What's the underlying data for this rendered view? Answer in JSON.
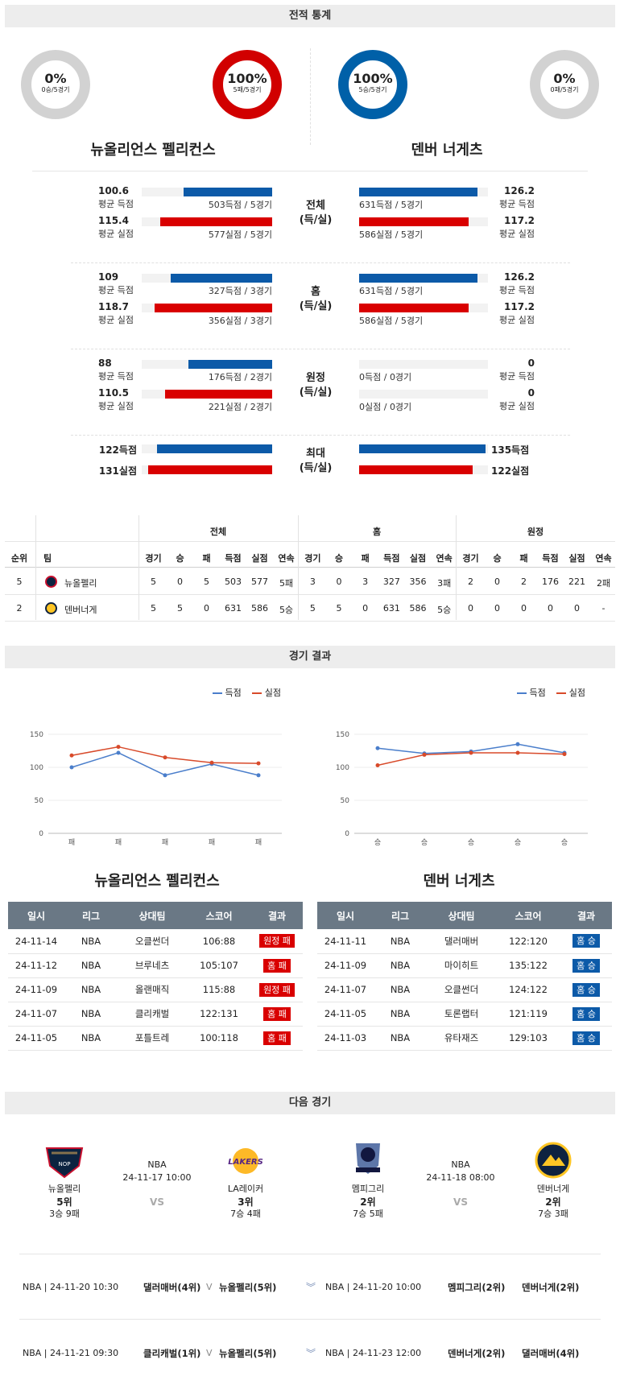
{
  "sections": {
    "stats": "전적 통계",
    "results": "경기 결과",
    "next": "다음 경기"
  },
  "donuts": [
    {
      "pct": "0%",
      "sub": "0승/5경기",
      "color": "#d2d2d2"
    },
    {
      "pct": "100%",
      "sub": "5패/5경기",
      "color": "#d10000"
    },
    {
      "pct": "100%",
      "sub": "5승/5경기",
      "color": "#0060a8"
    },
    {
      "pct": "0%",
      "sub": "0패/5경기",
      "color": "#d2d2d2"
    }
  ],
  "teams": {
    "home": "뉴올리언스 펠리컨스",
    "away": "덴버 너게츠"
  },
  "stat_rows": [
    {
      "cat": "전체",
      "cat2": "(득/실)",
      "l": [
        {
          "val": "100.6",
          "lab": "평균 득점",
          "txt": "503득점 / 5경기",
          "ratio": 0.68
        },
        {
          "val": "115.4",
          "lab": "평균 실점",
          "txt": "577실점 / 5경기",
          "ratio": 0.86
        }
      ],
      "r": [
        {
          "val": "126.2",
          "lab": "평균 득점",
          "txt": "631득점 / 5경기",
          "ratio": 0.92
        },
        {
          "val": "117.2",
          "lab": "평균 실점",
          "txt": "586실점 / 5경기",
          "ratio": 0.85
        }
      ]
    },
    {
      "cat": "홈",
      "cat2": "(득/실)",
      "l": [
        {
          "val": "109",
          "lab": "평균 득점",
          "txt": "327득점 / 3경기",
          "ratio": 0.78
        },
        {
          "val": "118.7",
          "lab": "평균 실점",
          "txt": "356실점 / 3경기",
          "ratio": 0.9
        }
      ],
      "r": [
        {
          "val": "126.2",
          "lab": "평균 득점",
          "txt": "631득점 / 5경기",
          "ratio": 0.92
        },
        {
          "val": "117.2",
          "lab": "평균 실점",
          "txt": "586실점 / 5경기",
          "ratio": 0.85
        }
      ]
    },
    {
      "cat": "원정",
      "cat2": "(득/실)",
      "l": [
        {
          "val": "88",
          "lab": "평균 득점",
          "txt": "176득점 / 2경기",
          "ratio": 0.64
        },
        {
          "val": "110.5",
          "lab": "평균 실점",
          "txt": "221실점 / 2경기",
          "ratio": 0.82
        }
      ],
      "r": [
        {
          "val": "0",
          "lab": "평균 득점",
          "txt": "0득점 / 0경기",
          "ratio": 0
        },
        {
          "val": "0",
          "lab": "평균 실점",
          "txt": "0실점 / 0경기",
          "ratio": 0
        }
      ]
    }
  ],
  "max_row": {
    "cat": "최대",
    "cat2": "(득/실)",
    "l": [
      {
        "val": "122득점",
        "ratio": 0.88
      },
      {
        "val": "131실점",
        "ratio": 0.95
      }
    ],
    "r": [
      {
        "val": "135득점",
        "ratio": 0.98
      },
      {
        "val": "122실점",
        "ratio": 0.88
      }
    ]
  },
  "ranking": {
    "groups": [
      "전체",
      "홈",
      "원정"
    ],
    "head": [
      "순위",
      "팀"
    ],
    "cols": [
      "경기",
      "승",
      "패",
      "득점",
      "실점",
      "연속"
    ],
    "rows": [
      {
        "rank": "5",
        "team": "뉴올펠리",
        "vals": [
          "5",
          "0",
          "5",
          "503",
          "577",
          "5패",
          "3",
          "0",
          "3",
          "327",
          "356",
          "3패",
          "2",
          "0",
          "2",
          "176",
          "221",
          "2패"
        ]
      },
      {
        "rank": "2",
        "team": "덴버너게",
        "vals": [
          "5",
          "5",
          "0",
          "631",
          "586",
          "5승",
          "5",
          "5",
          "0",
          "631",
          "586",
          "5승",
          "0",
          "0",
          "0",
          "0",
          "0",
          "-"
        ]
      }
    ]
  },
  "legend": {
    "score": "득점",
    "allowed": "실점"
  },
  "chart_data": [
    {
      "type": "line",
      "x": [
        "패",
        "패",
        "패",
        "패",
        "패"
      ],
      "ylim": [
        0,
        150
      ],
      "yticks": [
        0,
        50,
        100,
        150
      ],
      "series": [
        {
          "name": "득점",
          "color": "#4a7ecb",
          "values": [
            100,
            122,
            88,
            105,
            88
          ]
        },
        {
          "name": "실점",
          "color": "#d84a2a",
          "values": [
            118,
            131,
            115,
            107,
            106
          ]
        }
      ]
    },
    {
      "type": "line",
      "x": [
        "승",
        "승",
        "승",
        "승",
        "승"
      ],
      "ylim": [
        0,
        150
      ],
      "yticks": [
        0,
        50,
        100,
        150
      ],
      "series": [
        {
          "name": "득점",
          "color": "#4a7ecb",
          "values": [
            129,
            121,
            124,
            135,
            122
          ]
        },
        {
          "name": "실점",
          "color": "#d84a2a",
          "values": [
            103,
            119,
            122,
            122,
            120
          ]
        }
      ]
    }
  ],
  "result_cols": [
    "일시",
    "리그",
    "상대팀",
    "스코어",
    "결과"
  ],
  "results_left": [
    {
      "date": "24-11-14",
      "league": "NBA",
      "opp": "오클썬더",
      "score": "106:88",
      "res": "원정 패",
      "color": "red"
    },
    {
      "date": "24-11-12",
      "league": "NBA",
      "opp": "브루네츠",
      "score": "105:107",
      "res": "홈 패",
      "color": "red"
    },
    {
      "date": "24-11-09",
      "league": "NBA",
      "opp": "올랜매직",
      "score": "115:88",
      "res": "원정 패",
      "color": "red"
    },
    {
      "date": "24-11-07",
      "league": "NBA",
      "opp": "클리캐벌",
      "score": "122:131",
      "res": "홈 패",
      "color": "red"
    },
    {
      "date": "24-11-05",
      "league": "NBA",
      "opp": "포틀트레",
      "score": "100:118",
      "res": "홈 패",
      "color": "red"
    }
  ],
  "results_right": [
    {
      "date": "24-11-11",
      "league": "NBA",
      "opp": "댈러매버",
      "score": "122:120",
      "res": "홈 승",
      "color": "blue"
    },
    {
      "date": "24-11-09",
      "league": "NBA",
      "opp": "마이히트",
      "score": "135:122",
      "res": "홈 승",
      "color": "blue"
    },
    {
      "date": "24-11-07",
      "league": "NBA",
      "opp": "오클썬더",
      "score": "124:122",
      "res": "홈 승",
      "color": "blue"
    },
    {
      "date": "24-11-05",
      "league": "NBA",
      "opp": "토론랩터",
      "score": "121:119",
      "res": "홈 승",
      "color": "blue"
    },
    {
      "date": "24-11-03",
      "league": "NBA",
      "opp": "유타재즈",
      "score": "129:103",
      "res": "홈 승",
      "color": "blue"
    }
  ],
  "next_games": [
    {
      "league": "NBA",
      "time": "24-11-17 10:00",
      "vs": "VS",
      "t1": {
        "name": "뉴올펠리",
        "rank": "5위",
        "record": "3승 9패"
      },
      "t2": {
        "name": "LA레이커",
        "rank": "3위",
        "record": "7승 4패"
      }
    },
    {
      "league": "NBA",
      "time": "24-11-18 08:00",
      "vs": "VS",
      "t1": {
        "name": "멤피그리",
        "rank": "2위",
        "record": "7승 5패"
      },
      "t2": {
        "name": "덴버너게",
        "rank": "2위",
        "record": "7승 3패"
      }
    }
  ],
  "future": [
    {
      "l": {
        "info": "NBA | 24-11-20 10:30",
        "a": "댈러매버(4위)",
        "sep": "V",
        "b": "뉴올펠리(5위)"
      },
      "r": {
        "info": "NBA | 24-11-20 10:00",
        "a": "멤피그리(2위)",
        "b": "덴버너게(2위)"
      }
    },
    {
      "l": {
        "info": "NBA | 24-11-21 09:30",
        "a": "클리캐벌(1위)",
        "sep": "V",
        "b": "뉴올펠리(5위)"
      },
      "r": {
        "info": "NBA | 24-11-23 12:00",
        "a": "덴버너게(2위)",
        "b": "댈러매버(4위)"
      }
    }
  ]
}
